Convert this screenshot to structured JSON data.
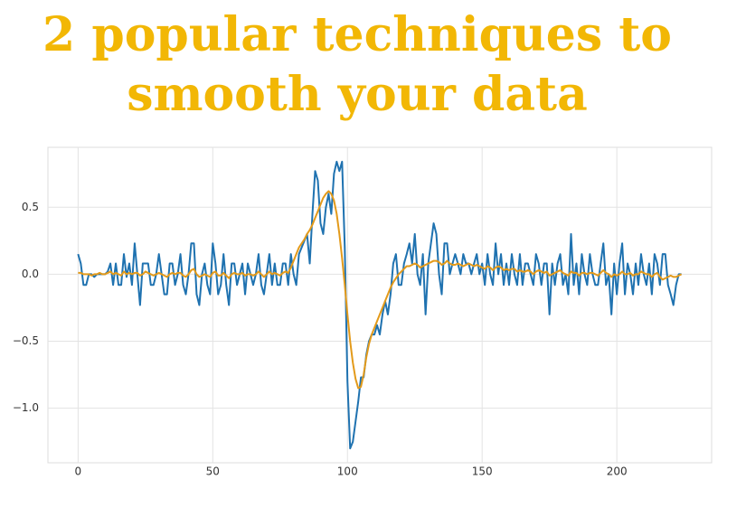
{
  "chart_data": {
    "type": "line",
    "title": [
      "2 popular techniques to",
      "smooth your data"
    ],
    "x": [
      0,
      1,
      2,
      3,
      4,
      5,
      6,
      7,
      8,
      9,
      10,
      11,
      12,
      13,
      14,
      15,
      16,
      17,
      18,
      19,
      20,
      21,
      22,
      23,
      24,
      25,
      26,
      27,
      28,
      29,
      30,
      31,
      32,
      33,
      34,
      35,
      36,
      37,
      38,
      39,
      40,
      41,
      42,
      43,
      44,
      45,
      46,
      47,
      48,
      49,
      50,
      51,
      52,
      53,
      54,
      55,
      56,
      57,
      58,
      59,
      60,
      61,
      62,
      63,
      64,
      65,
      66,
      67,
      68,
      69,
      70,
      71,
      72,
      73,
      74,
      75,
      76,
      77,
      78,
      79,
      80,
      81,
      82,
      83,
      84,
      85,
      86,
      87,
      88,
      89,
      90,
      91,
      92,
      93,
      94,
      95,
      96,
      97,
      98,
      99,
      100,
      101,
      102,
      103,
      104,
      105,
      106,
      107,
      108,
      109,
      110,
      111,
      112,
      113,
      114,
      115,
      116,
      117,
      118,
      119,
      120,
      121,
      122,
      123,
      124,
      125,
      126,
      127,
      128,
      129,
      130,
      131,
      132,
      133,
      134,
      135,
      136,
      137,
      138,
      139,
      140,
      141,
      142,
      143,
      144,
      145,
      146,
      147,
      148,
      149,
      150,
      151,
      152,
      153,
      154,
      155,
      156,
      157,
      158,
      159,
      160,
      161,
      162,
      163,
      164,
      165,
      166,
      167,
      168,
      169,
      170,
      171,
      172,
      173,
      174,
      175,
      176,
      177,
      178,
      179,
      180,
      181,
      182,
      183,
      184,
      185,
      186,
      187,
      188,
      189,
      190,
      191,
      192,
      193,
      194,
      195,
      196,
      197,
      198,
      199,
      200,
      201,
      202,
      203,
      204,
      205,
      206,
      207,
      208,
      209,
      210,
      211,
      212,
      213,
      214,
      215,
      216,
      217,
      218,
      219,
      220,
      221,
      222,
      223,
      224
    ],
    "series": [
      {
        "color": "#1f72b0",
        "values": [
          0.15,
          0.08,
          -0.08,
          -0.08,
          0,
          0,
          -0.02,
          0,
          0,
          0,
          0,
          0.02,
          0.08,
          -0.08,
          0.08,
          -0.08,
          -0.08,
          0.15,
          -0.02,
          0.08,
          -0.08,
          0.23,
          0,
          -0.23,
          0.08,
          0.08,
          0.08,
          -0.08,
          -0.08,
          0,
          0.15,
          0,
          -0.15,
          -0.15,
          0.08,
          0.08,
          -0.08,
          0,
          0.15,
          -0.08,
          -0.15,
          0,
          0.23,
          0.23,
          -0.15,
          -0.23,
          0,
          0.08,
          -0.08,
          -0.15,
          0.23,
          0.08,
          -0.15,
          -0.08,
          0.15,
          -0.08,
          -0.23,
          0.08,
          0.08,
          -0.08,
          0,
          0.08,
          -0.15,
          0.08,
          0,
          -0.08,
          0,
          0.15,
          -0.08,
          -0.15,
          0,
          0.15,
          -0.08,
          0.08,
          -0.08,
          -0.08,
          0.08,
          0.08,
          -0.08,
          0.15,
          0,
          -0.08,
          0.15,
          0.2,
          0.25,
          0.3,
          0.08,
          0.45,
          0.77,
          0.7,
          0.38,
          0.3,
          0.5,
          0.6,
          0.45,
          0.75,
          0.84,
          0.77,
          0.84,
          0.2,
          -0.8,
          -1.3,
          -1.25,
          -1.1,
          -0.95,
          -0.77,
          -0.77,
          -0.6,
          -0.5,
          -0.45,
          -0.45,
          -0.38,
          -0.45,
          -0.3,
          -0.2,
          -0.3,
          -0.15,
          0.08,
          0.15,
          -0.08,
          -0.08,
          0.08,
          0.15,
          0.23,
          0.08,
          0.3,
          0,
          -0.08,
          0.15,
          -0.3,
          0.08,
          0.23,
          0.38,
          0.3,
          0,
          -0.15,
          0.23,
          0.23,
          0,
          0.08,
          0.15,
          0.08,
          0,
          0.15,
          0.08,
          0.08,
          0,
          0.08,
          0.15,
          0,
          0.08,
          -0.08,
          0.15,
          0,
          -0.08,
          0.23,
          0,
          0.15,
          -0.08,
          0.08,
          -0.08,
          0.15,
          0,
          -0.08,
          0.15,
          -0.08,
          0.08,
          0.08,
          0,
          -0.08,
          0.15,
          0.08,
          -0.08,
          0.08,
          0.08,
          -0.3,
          0.08,
          -0.08,
          0.08,
          0.15,
          -0.08,
          0,
          -0.15,
          0.3,
          -0.08,
          0.08,
          -0.15,
          0.15,
          0,
          -0.08,
          0.15,
          0,
          -0.08,
          -0.08,
          0.08,
          0.23,
          -0.08,
          0,
          -0.3,
          0.08,
          -0.15,
          0.08,
          0.23,
          -0.15,
          0.08,
          0,
          -0.15,
          0.08,
          -0.08,
          0.15,
          0,
          -0.08,
          0.08,
          -0.15,
          0.15,
          0.08,
          -0.08,
          0.15,
          0.15,
          -0.08,
          -0.15,
          -0.23,
          -0.08,
          0,
          0
        ]
      },
      {
        "color": "#e39a1a",
        "values": [
          0.01,
          0.01,
          0,
          0,
          0,
          -0.01,
          0,
          0,
          0.01,
          0,
          0,
          0.01,
          0.02,
          0,
          0.01,
          0,
          -0.01,
          0.02,
          0,
          0.01,
          0,
          0.01,
          0.01,
          -0.01,
          0,
          0.02,
          0.01,
          0,
          -0.01,
          0,
          0.01,
          0,
          -0.01,
          -0.02,
          0,
          0.01,
          0,
          0.01,
          0.01,
          -0.01,
          -0.02,
          0,
          0.03,
          0.04,
          0,
          -0.02,
          -0.01,
          0,
          -0.01,
          -0.02,
          0.01,
          0.02,
          -0.01,
          -0.01,
          0.01,
          -0.01,
          -0.03,
          0,
          0.01,
          0,
          0,
          0.01,
          -0.01,
          0,
          0,
          -0.01,
          0,
          0.02,
          0,
          -0.02,
          0,
          0.02,
          0,
          0.01,
          0,
          -0.01,
          0.01,
          0.02,
          0.01,
          0.05,
          0.1,
          0.15,
          0.2,
          0.23,
          0.26,
          0.3,
          0.33,
          0.37,
          0.42,
          0.47,
          0.52,
          0.57,
          0.6,
          0.62,
          0.6,
          0.55,
          0.45,
          0.3,
          0.12,
          -0.08,
          -0.3,
          -0.5,
          -0.66,
          -0.78,
          -0.85,
          -0.84,
          -0.75,
          -0.62,
          -0.52,
          -0.45,
          -0.4,
          -0.35,
          -0.3,
          -0.25,
          -0.2,
          -0.15,
          -0.1,
          -0.06,
          -0.03,
          0,
          0.02,
          0.04,
          0.06,
          0.06,
          0.07,
          0.08,
          0.07,
          0.05,
          0.06,
          0.07,
          0.08,
          0.09,
          0.1,
          0.1,
          0.09,
          0.07,
          0.08,
          0.1,
          0.08,
          0.07,
          0.07,
          0.08,
          0.07,
          0.06,
          0.07,
          0.08,
          0.07,
          0.06,
          0.07,
          0.06,
          0.05,
          0.04,
          0.06,
          0.05,
          0.03,
          0.05,
          0.06,
          0.05,
          0.03,
          0.04,
          0.03,
          0.04,
          0.04,
          0.02,
          0.03,
          0.02,
          0.02,
          0.03,
          0.02,
          0,
          0.02,
          0.03,
          0.02,
          0.01,
          0.02,
          -0.01,
          0,
          0.01,
          0.02,
          0.03,
          0.01,
          0,
          -0.01,
          0.02,
          0.01,
          0.01,
          -0.01,
          0.01,
          0.01,
          0,
          0.01,
          0.01,
          0,
          -0.01,
          0.01,
          0.03,
          0.01,
          0,
          -0.02,
          0,
          -0.01,
          0,
          0.02,
          0,
          0,
          0.01,
          -0.01,
          0,
          0,
          0.02,
          0.01,
          0,
          0,
          -0.02,
          0,
          0.01,
          -0.02,
          -0.04,
          -0.03,
          -0.02,
          -0.01,
          -0.02,
          -0.02,
          -0.01,
          0
        ]
      }
    ],
    "xlim": [
      -11.2,
      235.2
    ],
    "ylim": [
      -1.407,
      0.947
    ],
    "xticks": [
      0,
      50,
      100,
      150,
      200
    ],
    "yticks": [
      {
        "value": -1.0,
        "label": "−1.0"
      },
      {
        "value": -0.5,
        "label": "−0.5"
      },
      {
        "value": 0,
        "label": "0.0"
      },
      {
        "value": 0.5,
        "label": "0.5"
      }
    ],
    "grid": true
  }
}
